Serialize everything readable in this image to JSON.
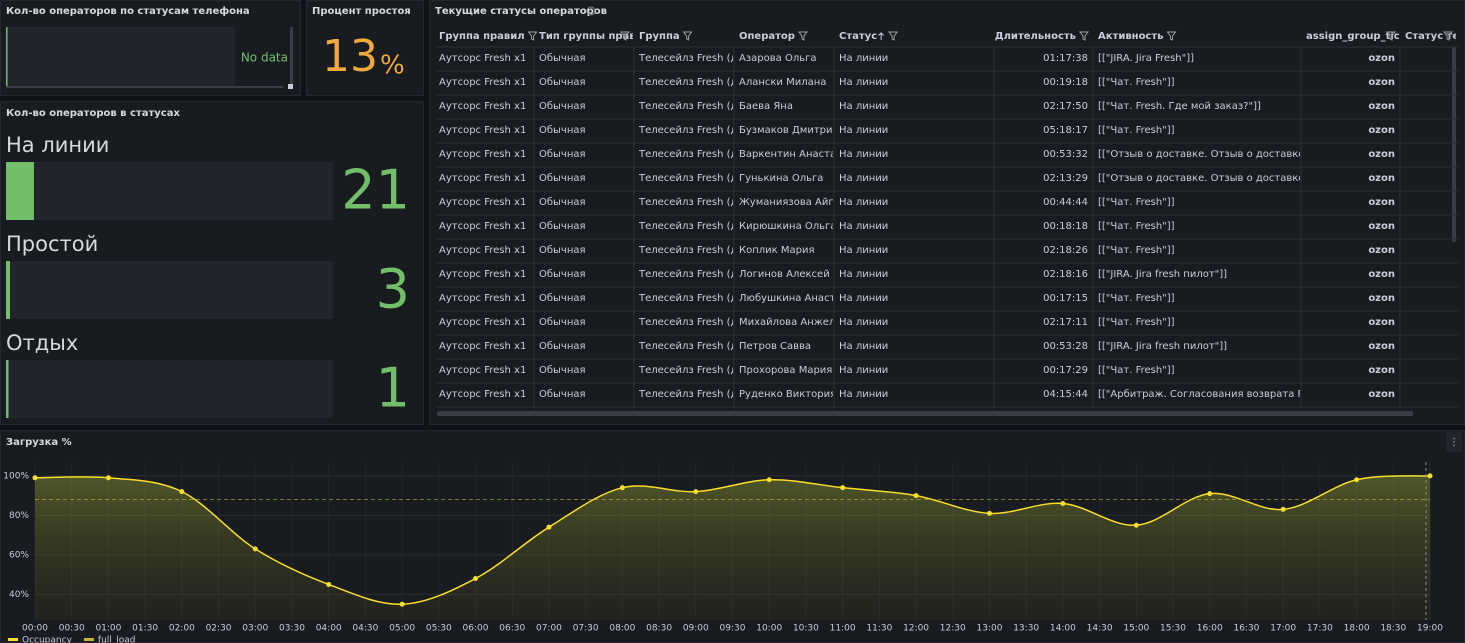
{
  "panels": {
    "phone_status": {
      "title": "Кол-во операторов по статусам телефона",
      "message": "No data"
    },
    "idle": {
      "title": "Процент простоя",
      "value": 13,
      "unit": "%"
    },
    "statuses": {
      "title": "Кол-во операторов в статусах",
      "items": [
        {
          "label": "На линии",
          "value": 21
        },
        {
          "label": "Простой",
          "value": 3
        },
        {
          "label": "Отдых",
          "value": 1
        }
      ]
    },
    "table": {
      "title": "Текущие статусы операторов",
      "columns": [
        "Группа правил",
        "Тип группы прав",
        "Группа",
        "Оператор",
        "Статус",
        "Длительность",
        "Активность",
        "assign_group_ticl",
        "Статус теле"
      ],
      "rows": [
        [
          "Аутсорс Fresh x1",
          "Обычная",
          "Телесейлз Fresh (до",
          "Азарова Ольга",
          "На линии",
          "01:17:38",
          "[[\"JIRA. Jira Fresh\"]]",
          "ozon"
        ],
        [
          "Аутсорс Fresh x1",
          "Обычная",
          "Телесейлз Fresh (до",
          "Алански Милана",
          "На линии",
          "00:19:18",
          "[[\"Чат. Fresh\"]]",
          "ozon"
        ],
        [
          "Аутсорс Fresh x1",
          "Обычная",
          "Телесейлз Fresh (до",
          "Баева Яна",
          "На линии",
          "02:17:50",
          "[[\"Чат. Fresh. Где мой заказ?\"]]",
          "ozon"
        ],
        [
          "Аутсорс Fresh x1",
          "Обычная",
          "Телесейлз Fresh (до",
          "Бузмаков Дмитрий",
          "На линии",
          "05:18:17",
          "[[\"Чат. Fresh\"]]",
          "ozon"
        ],
        [
          "Аутсорс Fresh x1",
          "Обычная",
          "Телесейлз Fresh (до",
          "Варкентин Анастаси",
          "На линии",
          "00:53:32",
          "[[\"Отзыв о доставке. Отзыв о доставке\"]]",
          "ozon"
        ],
        [
          "Аутсорс Fresh x1",
          "Обычная",
          "Телесейлз Fresh (до",
          "Гунькина Ольга",
          "На линии",
          "02:13:29",
          "[[\"Отзыв о доставке. Отзыв о доставке\"]]",
          "ozon"
        ],
        [
          "Аутсорс Fresh x1",
          "Обычная",
          "Телесейлз Fresh (до",
          "Жуманиязова Айгул",
          "На линии",
          "00:44:44",
          "[[\"Чат. Fresh\"]]",
          "ozon"
        ],
        [
          "Аутсорс Fresh x1",
          "Обычная",
          "Телесейлз Fresh (до",
          "Кирюшкина Ольга",
          "На линии",
          "00:18:18",
          "[[\"Чат. Fresh\"]]",
          "ozon"
        ],
        [
          "Аутсорс Fresh x1",
          "Обычная",
          "Телесейлз Fresh (до",
          "Коплик Мария",
          "На линии",
          "02:18:26",
          "[[\"Чат. Fresh\"]]",
          "ozon"
        ],
        [
          "Аутсорс Fresh x1",
          "Обычная",
          "Телесейлз Fresh (до",
          "Логинов Алексей",
          "На линии",
          "02:18:16",
          "[[\"JIRA. Jira fresh пилот\"]]",
          "ozon"
        ],
        [
          "Аутсорс Fresh x1",
          "Обычная",
          "Телесейлз Fresh (до",
          "Любушкина Анастас",
          "На линии",
          "00:17:15",
          "[[\"Чат. Fresh\"]]",
          "ozon"
        ],
        [
          "Аутсорс Fresh x1",
          "Обычная",
          "Телесейлз Fresh (до",
          "Михайлова Анжела",
          "На линии",
          "02:17:11",
          "[[\"Чат. Fresh\"]]",
          "ozon"
        ],
        [
          "Аутсорс Fresh x1",
          "Обычная",
          "Телесейлз Fresh (до",
          "Петров Савва",
          "На линии",
          "00:53:28",
          "[[\"JIRA. Jira fresh пилот\"]]",
          "ozon"
        ],
        [
          "Аутсорс Fresh x1",
          "Обычная",
          "Телесейлз Fresh (до",
          "Прохорова Мария",
          "На линии",
          "00:17:29",
          "[[\"Чат. Fresh\"]]",
          "ozon"
        ],
        [
          "Аутсорс Fresh x1",
          "Обычная",
          "Телесейлз Fresh (до",
          "Руденко Виктория",
          "На линии",
          "04:15:44",
          "[[\"Арбитраж. Согласования возврата Fresh",
          "ozon"
        ]
      ]
    }
  },
  "chart_data": {
    "type": "line",
    "title": "Загрузка %",
    "xticks": [
      "00:00",
      "00:30",
      "01:00",
      "01:30",
      "02:00",
      "02:30",
      "03:00",
      "03:30",
      "04:00",
      "04:30",
      "05:00",
      "05:30",
      "06:00",
      "06:30",
      "07:00",
      "07:30",
      "08:00",
      "08:30",
      "09:00",
      "09:30",
      "10:00",
      "10:30",
      "11:00",
      "11:30",
      "12:00",
      "12:30",
      "13:00",
      "13:30",
      "14:00",
      "14:30",
      "15:00",
      "15:30",
      "16:00",
      "16:30",
      "17:00",
      "17:30",
      "18:00",
      "18:30",
      "19:00"
    ],
    "x": [
      "00:00",
      "01:00",
      "02:00",
      "03:00",
      "04:00",
      "05:00",
      "06:00",
      "07:00",
      "08:00",
      "09:00",
      "10:00",
      "11:00",
      "12:00",
      "13:00",
      "14:00",
      "15:00",
      "16:00",
      "17:00",
      "18:00",
      "19:00"
    ],
    "series": [
      {
        "name": "Occupancy",
        "color": "#fade2a",
        "values": [
          99,
          99,
          92,
          63,
          45,
          35,
          48,
          74,
          94,
          92,
          98,
          94,
          90,
          81,
          86,
          75,
          91,
          83,
          98,
          100
        ]
      },
      {
        "name": "full_load",
        "color": "#c9b52a",
        "values": [
          88,
          88,
          88,
          88,
          88,
          88,
          88,
          88,
          88,
          88,
          88,
          88,
          88,
          88,
          88,
          88,
          88,
          88,
          88,
          88
        ]
      }
    ],
    "ylim": [
      27,
      107
    ],
    "yticks": [
      {
        "value": 40,
        "label": "40%"
      },
      {
        "value": 60,
        "label": "60%"
      },
      {
        "value": 80,
        "label": "80%"
      },
      {
        "value": 100,
        "label": "100%"
      }
    ],
    "grid": true
  }
}
